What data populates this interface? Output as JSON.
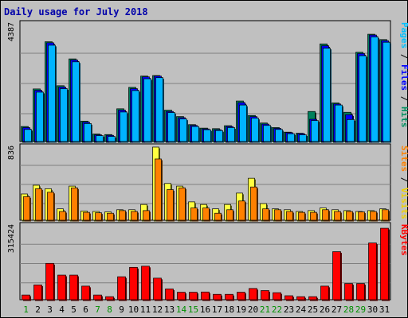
{
  "chart_data": {
    "type": "bar",
    "title": "Daily usage for July 2018",
    "categories": [
      "1",
      "2",
      "3",
      "4",
      "5",
      "6",
      "7",
      "8",
      "9",
      "10",
      "11",
      "12",
      "13",
      "14",
      "15",
      "16",
      "17",
      "18",
      "19",
      "20",
      "21",
      "22",
      "23",
      "24",
      "25",
      "26",
      "27",
      "28",
      "29",
      "30",
      "31"
    ],
    "weekend_days": [
      "1",
      "7",
      "8",
      "14",
      "15",
      "21",
      "22",
      "28",
      "29"
    ],
    "panels": [
      {
        "id": "hits-files-pages",
        "ymax_label": "4387",
        "ylim": [
          0,
          4387
        ],
        "right_label": [
          {
            "text": "Pages",
            "color": "#00c0ff"
          },
          {
            "text": " / ",
            "color": "#000000"
          },
          {
            "text": "Files",
            "color": "#0000ff"
          },
          {
            "text": " / ",
            "color": "#000000"
          },
          {
            "text": "Hits",
            "color": "#008f5f"
          }
        ],
        "series": [
          {
            "name": "Hits",
            "color": "#00805c",
            "values": [
              560,
              1960,
              3720,
              2080,
              3080,
              760,
              280,
              260,
              1220,
              2020,
              2440,
              2460,
              1170,
              930,
              630,
              500,
              480,
              590,
              1510,
              970,
              690,
              520,
              350,
              310,
              1120,
              3640,
              1440,
              1090,
              3330,
              4000,
              3800
            ]
          },
          {
            "name": "Files",
            "color": "#0000ff",
            "values": [
              520,
              1910,
              3680,
              2030,
              3040,
              720,
              250,
              230,
              1170,
              1970,
              2410,
              2440,
              1120,
              890,
              600,
              470,
              440,
              560,
              1450,
              930,
              650,
              490,
              330,
              290,
              830,
              3570,
              1400,
              1000,
              3280,
              3970,
              3760
            ]
          },
          {
            "name": "Pages",
            "color": "#00b4ff",
            "values": [
              450,
              1840,
              3590,
              1970,
              2970,
              670,
              220,
              190,
              1100,
              1900,
              2340,
              2380,
              1080,
              840,
              560,
              440,
              410,
              520,
              1360,
              870,
              600,
              450,
              290,
              250,
              780,
              3480,
              1360,
              820,
              3200,
              3900,
              3700
            ]
          }
        ]
      },
      {
        "id": "visits-sites",
        "ymax_label": "836",
        "ylim": [
          0,
          836
        ],
        "right_label": [
          {
            "text": "Sites",
            "color": "#ff8000"
          },
          {
            "text": " / ",
            "color": "#000000"
          },
          {
            "text": "Visits",
            "color": "#f0d000"
          }
        ],
        "series": [
          {
            "name": "Visits",
            "color": "#ffff40",
            "values": [
              300,
              400,
              360,
              130,
              390,
              105,
              100,
              95,
              120,
              120,
              180,
              836,
              420,
              390,
              210,
              180,
              130,
              180,
              310,
              480,
              190,
              130,
              120,
              100,
              110,
              140,
              120,
              110,
              100,
              110,
              130
            ]
          },
          {
            "name": "Sites",
            "color": "#ff8000",
            "values": [
              270,
              360,
              320,
              100,
              370,
              90,
              85,
              80,
              110,
              100,
              110,
              700,
              350,
              370,
              140,
              140,
              80,
              120,
              220,
              380,
              130,
              120,
              100,
              90,
              90,
              120,
              100,
              100,
              95,
              100,
              120
            ]
          }
        ]
      },
      {
        "id": "kbytes",
        "ymax_label": "315424",
        "ylim": [
          0,
          315424
        ],
        "right_label": [
          {
            "text": "KBytes",
            "color": "#ff0000"
          }
        ],
        "series": [
          {
            "name": "KBytes",
            "color": "#ff0000",
            "values": [
              20000,
              63000,
              155000,
              105000,
              105000,
              58000,
              20000,
              13000,
              98000,
              138000,
              143000,
              92000,
              46000,
              32000,
              32000,
              33000,
              23000,
              23000,
              32000,
              48000,
              39000,
              30000,
              17000,
              13000,
              13000,
              58000,
              205000,
              69000,
              69000,
              242000,
              305000
            ]
          }
        ]
      }
    ]
  }
}
